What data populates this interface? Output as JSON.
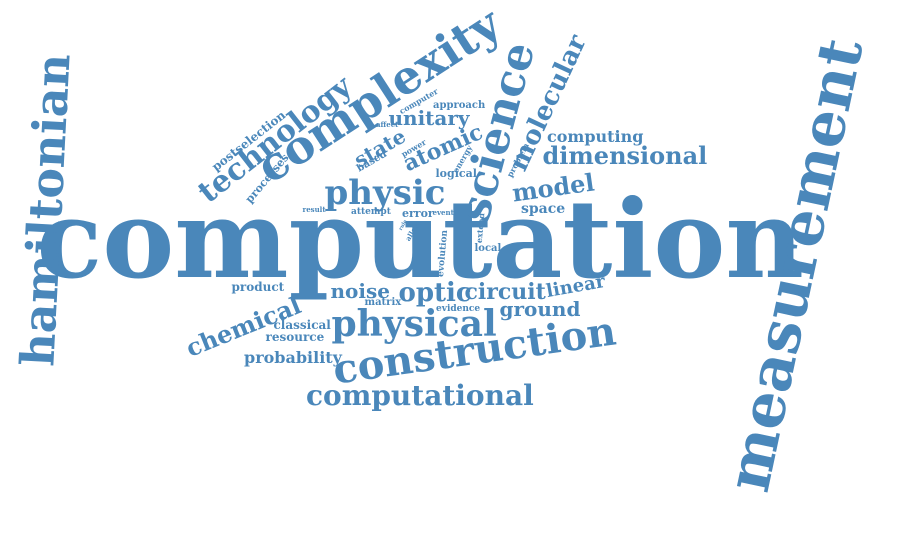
{
  "accent_color": "#4a87ba",
  "words": {
    "computation": "computation",
    "measurement": "measurement",
    "hamiltonian": "hamiltonian",
    "complexity": "complexity",
    "science": "science",
    "construction": "construction",
    "physical": "physical",
    "physic": "physic",
    "computational": "computational",
    "technology": "technology",
    "molecular": "molecular",
    "chemical": "chemical",
    "dimensional": "dimensional",
    "model": "model",
    "atomic": "atomic",
    "unitary": "unitary",
    "state": "state",
    "noise": "noise",
    "optic": "optic",
    "circuit": "circuit",
    "ground": "ground",
    "linear": "linear",
    "probability": "probability",
    "computing": "computing",
    "postselection": "postselection",
    "processes": "processes",
    "classical": "classical",
    "resource": "resource",
    "product": "product",
    "space": "space",
    "logical": "logical",
    "matrix": "matrix",
    "evidence": "evidence",
    "local": "local",
    "evolution": "evolution",
    "extend": "extend",
    "error": "error",
    "event": "event",
    "attempt": "attempt",
    "result": "result",
    "based": "based",
    "affect": "affect",
    "power": "power",
    "computer": "computer",
    "approach": "approach",
    "problem": "problem",
    "energy": "energy",
    "allow": "allow",
    "rule": "rule"
  }
}
